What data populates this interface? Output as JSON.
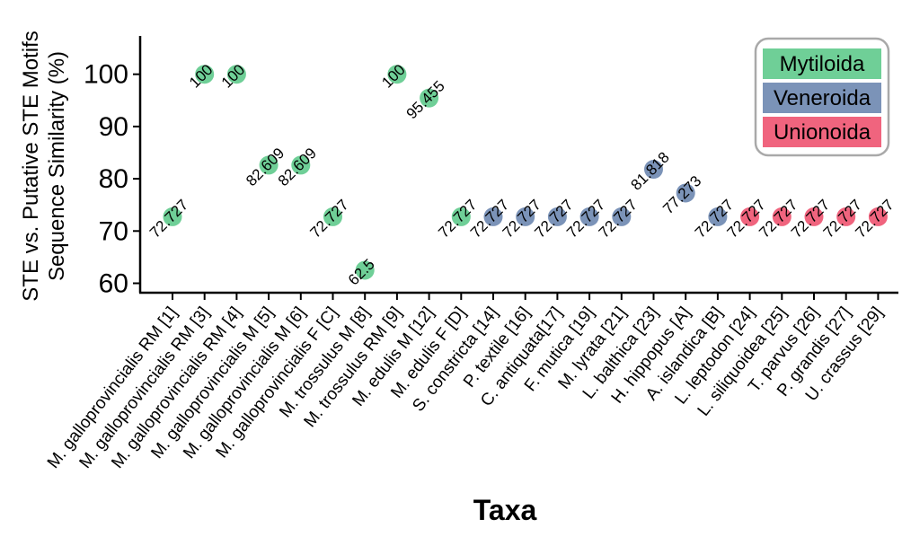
{
  "chart_data": {
    "type": "scatter",
    "ylabel_line1": "STE vs. Putative STE Motifs",
    "ylabel_line2": "Sequence Similarity (%)",
    "xlabel": "Taxa",
    "ylim": [
      58,
      107
    ],
    "yticks": [
      60,
      70,
      80,
      90,
      100
    ],
    "grid": false,
    "legend_position": "top-right",
    "colors": {
      "Mytiloida": "#6fcf97",
      "Veneroida": "#7b93b8",
      "Unionoida": "#f0647e"
    },
    "legend": [
      {
        "name": "Mytiloida",
        "color": "#6fcf97"
      },
      {
        "name": "Veneroida",
        "color": "#7b93b8"
      },
      {
        "name": "Unionoida",
        "color": "#f0647e"
      }
    ],
    "points": [
      {
        "taxon": "M. galloprovincialis RM [1]",
        "value": 72.727,
        "label": "72.727",
        "order": "Mytiloida"
      },
      {
        "taxon": "M. galloprovincialis RM [3]",
        "value": 100,
        "label": "100",
        "order": "Mytiloida"
      },
      {
        "taxon": "M. galloprovincialis RM [4]",
        "value": 100,
        "label": "100",
        "order": "Mytiloida"
      },
      {
        "taxon": "M. galloprovincialis M [5]",
        "value": 82.609,
        "label": "82.609",
        "order": "Mytiloida"
      },
      {
        "taxon": "M. galloprovincialis M [6]",
        "value": 82.609,
        "label": "82.609",
        "order": "Mytiloida"
      },
      {
        "taxon": "M. galloprovincialis F [C]",
        "value": 72.727,
        "label": "72.727",
        "order": "Mytiloida"
      },
      {
        "taxon": "M. trossulus M [8]",
        "value": 62.5,
        "label": "62.5",
        "order": "Mytiloida"
      },
      {
        "taxon": "M. trossulus RM [9]",
        "value": 100,
        "label": "100",
        "order": "Mytiloida"
      },
      {
        "taxon": "M. edulis M [12]",
        "value": 95.455,
        "label": "95.455",
        "order": "Mytiloida"
      },
      {
        "taxon": "M. edulis F [D]",
        "value": 72.727,
        "label": "72.727",
        "order": "Mytiloida"
      },
      {
        "taxon": "S. constricta [14]",
        "value": 72.727,
        "label": "72.727",
        "order": "Veneroida"
      },
      {
        "taxon": "P. textile [16]",
        "value": 72.727,
        "label": "72.727",
        "order": "Veneroida"
      },
      {
        "taxon": "C. antiquata[17]",
        "value": 72.727,
        "label": "72.727",
        "order": "Veneroida"
      },
      {
        "taxon": "F. mutica [19]",
        "value": 72.727,
        "label": "72.727",
        "order": "Veneroida"
      },
      {
        "taxon": "M. lyrata [21]",
        "value": 72.727,
        "label": "72.727",
        "order": "Veneroida"
      },
      {
        "taxon": "L. balthica [23]",
        "value": 81.818,
        "label": "81.818",
        "order": "Veneroida"
      },
      {
        "taxon": "H. hippopus [A]",
        "value": 77.273,
        "label": "77.273",
        "order": "Veneroida"
      },
      {
        "taxon": "A. islandica [B]",
        "value": 72.727,
        "label": "72.727",
        "order": "Veneroida"
      },
      {
        "taxon": "L. leptodon [24]",
        "value": 72.727,
        "label": "72.727",
        "order": "Unionoida"
      },
      {
        "taxon": "L. siliquoidea [25]",
        "value": 72.727,
        "label": "72.727",
        "order": "Unionoida"
      },
      {
        "taxon": "T. parvus [26]",
        "value": 72.727,
        "label": "72.727",
        "order": "Unionoida"
      },
      {
        "taxon": "P. grandis [27]",
        "value": 72.727,
        "label": "72.727",
        "order": "Unionoida"
      },
      {
        "taxon": "U. crassus [29]",
        "value": 72.727,
        "label": "72.727",
        "order": "Unionoida"
      }
    ]
  }
}
